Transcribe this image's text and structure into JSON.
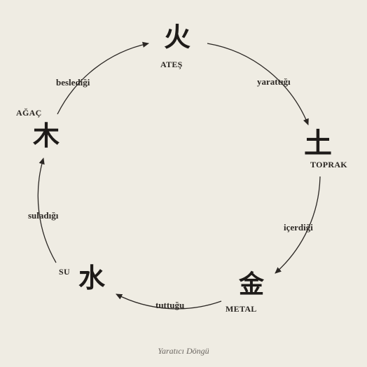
{
  "elements": {
    "fire": {
      "char": "火",
      "label": "ATEŞ"
    },
    "earth": {
      "char": "土",
      "label": "TOPRAK"
    },
    "metal": {
      "char": "金",
      "label": "METAL"
    },
    "water": {
      "char": "水",
      "label": "SU"
    },
    "wood": {
      "char": "木",
      "label": "AĞAÇ"
    }
  },
  "relations": {
    "fire_to_earth": "yarattığı",
    "earth_to_metal": "içerdiği",
    "metal_to_water": "tuttuğu",
    "water_to_wood": "suladığı",
    "wood_to_fire": "beslediği"
  },
  "caption": "Yaratıcı Döngü",
  "colors": {
    "background": "#efece3",
    "ink": "#2b2724"
  }
}
